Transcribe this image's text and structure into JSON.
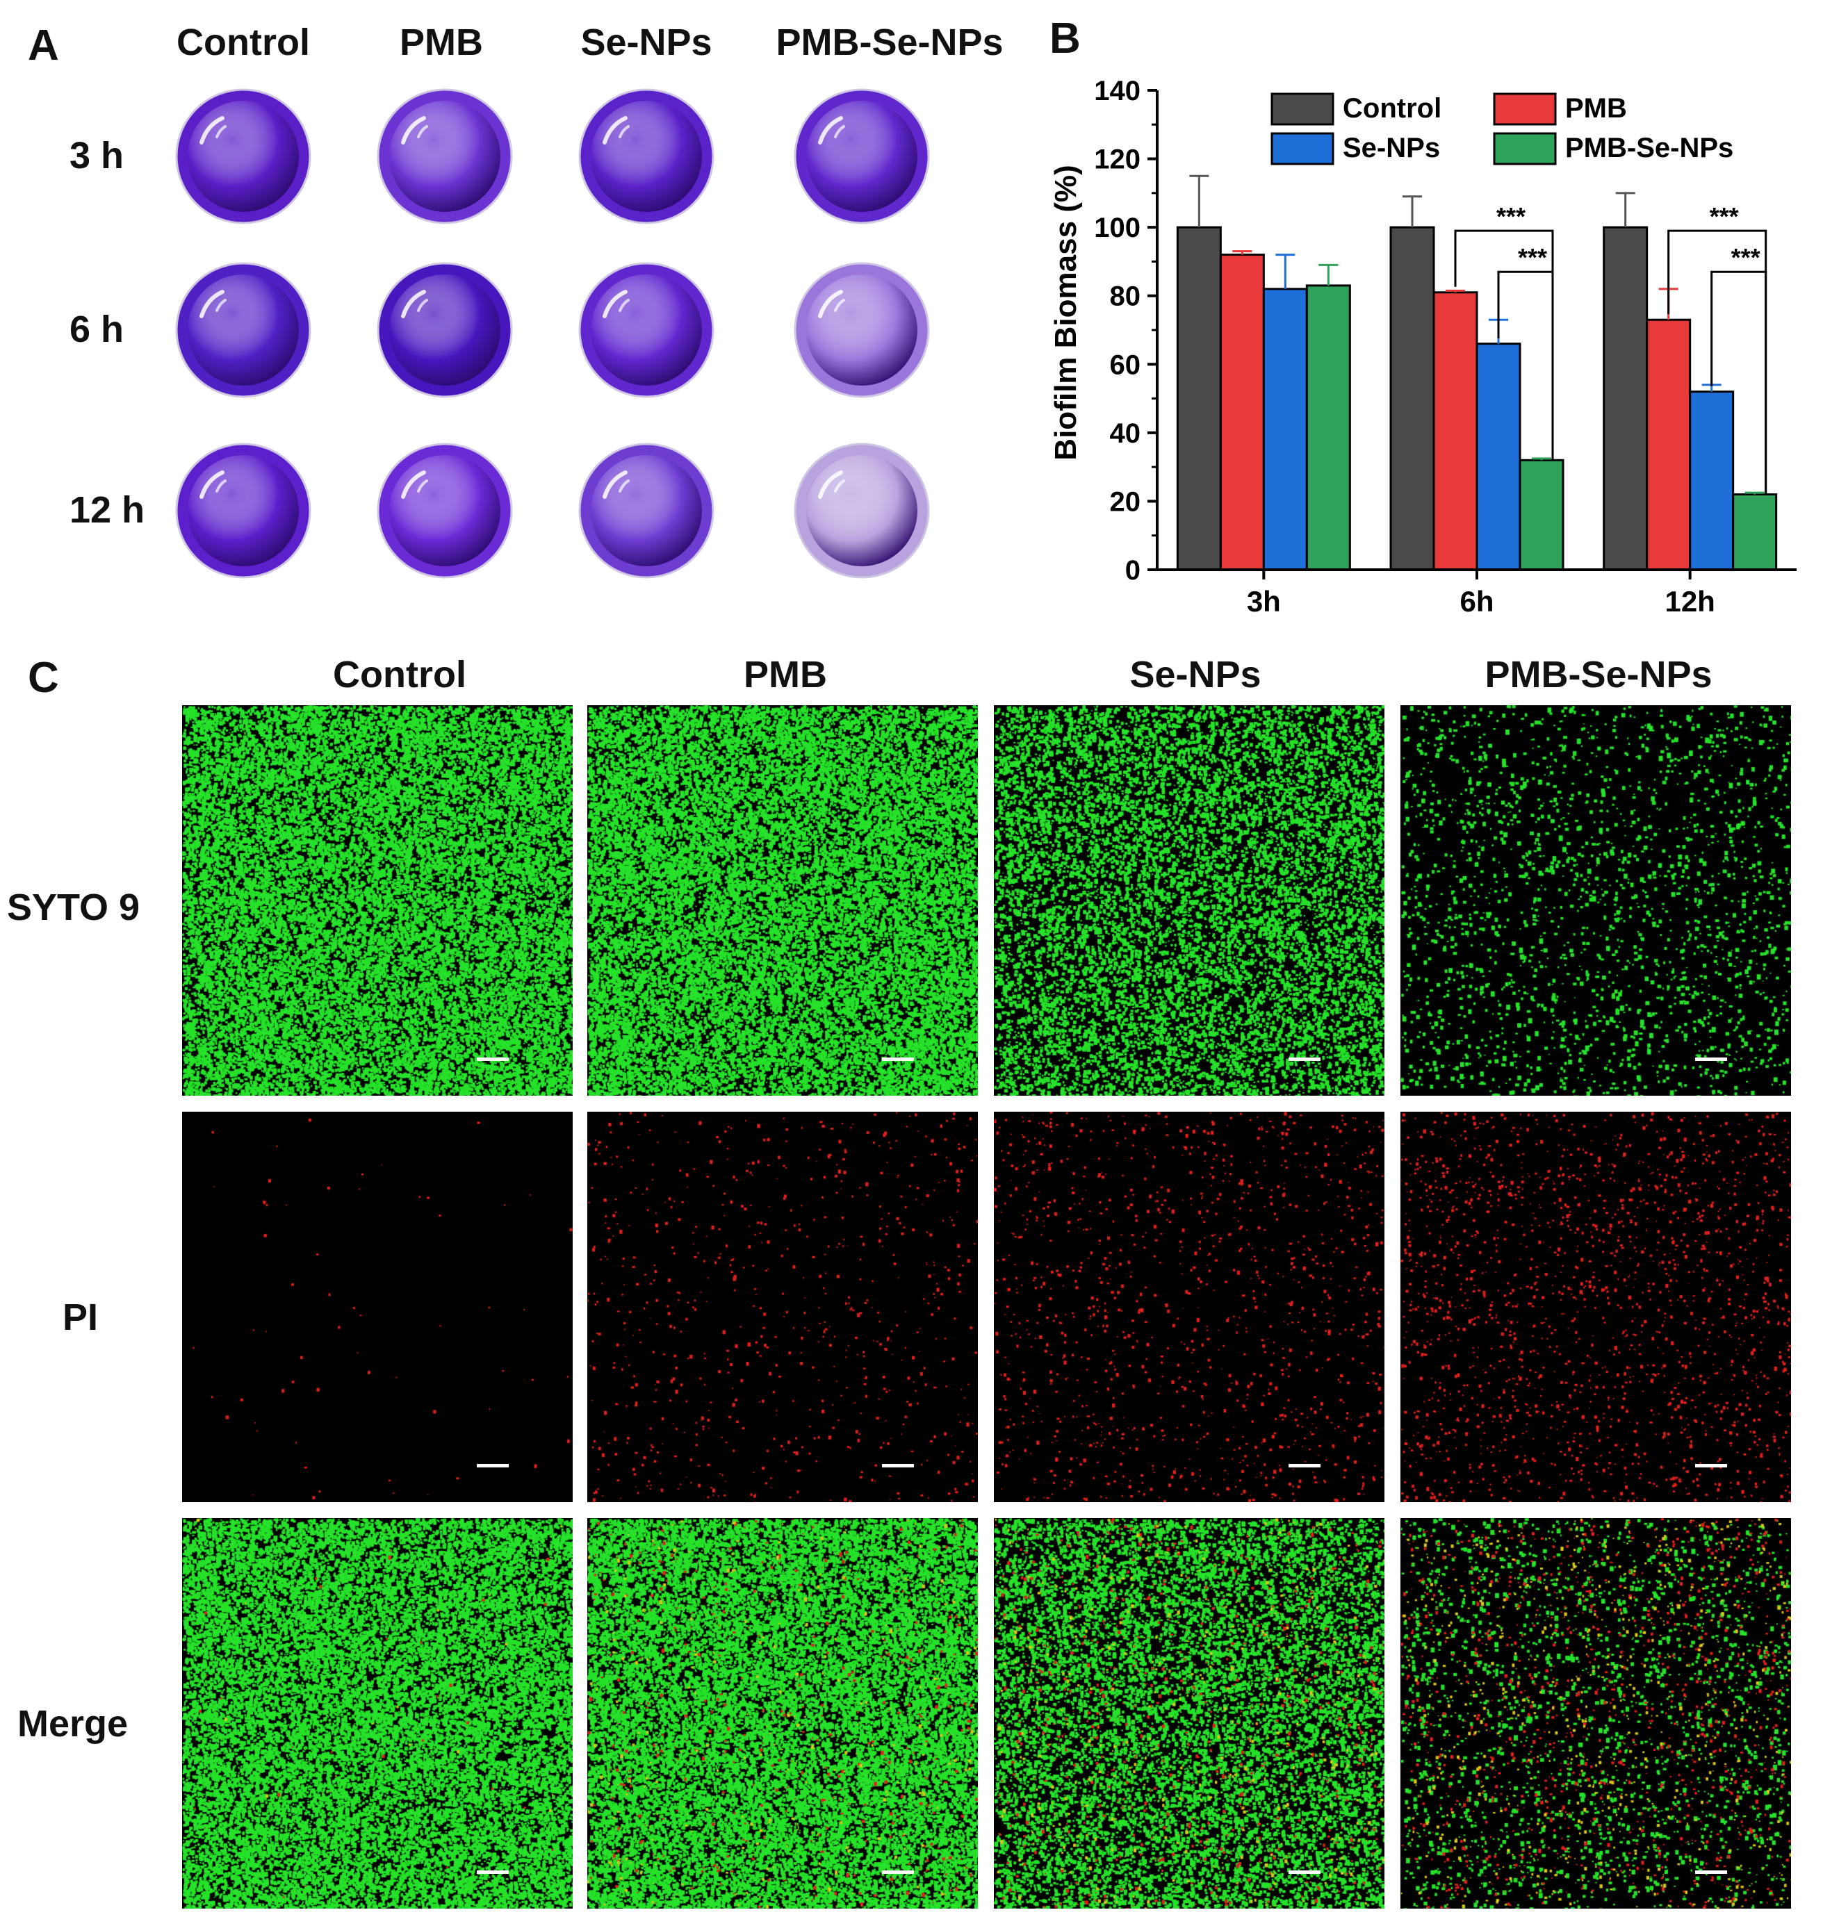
{
  "panel_letters": {
    "a": "A",
    "b": "B",
    "c": "C"
  },
  "wells": {
    "columns": [
      "Control",
      "PMB",
      "Se-NPs",
      "PMB-Se-NPs"
    ],
    "rows": [
      "3 h",
      "6 h",
      "12 h"
    ],
    "color_matrix": [
      [
        "#5a1fc7",
        "#6b34d2",
        "#5a22c9",
        "#6028cc"
      ],
      [
        "#5120c5",
        "#4816bd",
        "#6127cf",
        "#9a76db"
      ],
      [
        "#5b1fcb",
        "#6a2ad6",
        "#6f3cd2",
        "#b9a3df"
      ]
    ]
  },
  "chart_data": {
    "type": "bar",
    "title": "",
    "xlabel": "",
    "ylabel": "Biofilm Biomass (%)",
    "ylim": [
      0,
      140
    ],
    "yticks": [
      "0",
      "20",
      "40",
      "60",
      "80",
      "100",
      "120",
      "140"
    ],
    "categories": [
      "3h",
      "6h",
      "12h"
    ],
    "series": [
      {
        "name": "Control",
        "color": "#4a4a4a",
        "values": [
          100,
          100,
          100
        ],
        "errors": [
          15,
          9,
          10
        ]
      },
      {
        "name": "PMB",
        "color": "#e83a3a",
        "values": [
          92,
          81,
          73
        ],
        "errors": [
          1,
          0.5,
          9
        ]
      },
      {
        "name": "Se-NPs",
        "color": "#1f6fd8",
        "values": [
          82,
          66,
          52
        ],
        "errors": [
          10,
          7,
          2
        ]
      },
      {
        "name": "PMB-Se-NPs",
        "color": "#2fa35c",
        "values": [
          83,
          32,
          22
        ],
        "errors": [
          6,
          0.5,
          0.5
        ]
      }
    ],
    "legend_position": "top",
    "annotations": [
      {
        "category": "6h",
        "from": "PMB",
        "to": "PMB-Se-NPs",
        "label": "***"
      },
      {
        "category": "6h",
        "from": "Se-NPs",
        "to": "PMB-Se-NPs",
        "label": "***"
      },
      {
        "category": "12h",
        "from": "PMB",
        "to": "PMB-Se-NPs",
        "label": "***"
      },
      {
        "category": "12h",
        "from": "Se-NPs",
        "to": "PMB-Se-NPs",
        "label": "***"
      }
    ]
  },
  "microscopy": {
    "columns": [
      "Control",
      "PMB",
      "Se-NPs",
      "PMB-Se-NPs"
    ],
    "rows": [
      "SYTO 9",
      "PI",
      "Merge"
    ],
    "green_density": [
      0.85,
      0.85,
      0.45,
      0.08
    ],
    "red_density": [
      0.01,
      0.12,
      0.2,
      0.3
    ],
    "green_color": "#26e22a",
    "red_color": "#e0201c",
    "merge_color": "#d8c81c"
  }
}
